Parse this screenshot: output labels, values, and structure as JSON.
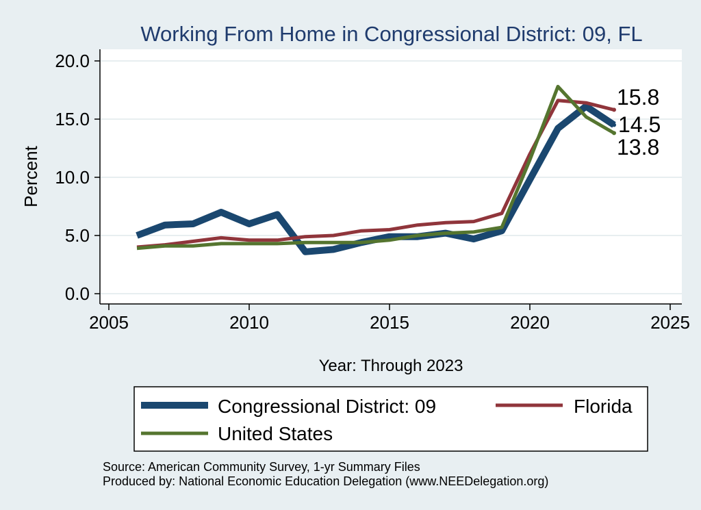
{
  "chart_data": {
    "type": "line",
    "title": "Working From Home in Congressional District: 09, FL",
    "xlabel": "Year: Through 2023",
    "ylabel": "Percent",
    "xlim": [
      2005,
      2025
    ],
    "ylim": [
      0,
      20
    ],
    "xticks": [
      2005,
      2010,
      2015,
      2020,
      2025
    ],
    "yticks": [
      "0.0",
      "5.0",
      "10.0",
      "15.0",
      "20.0"
    ],
    "x": [
      2006,
      2007,
      2008,
      2009,
      2010,
      2011,
      2012,
      2013,
      2014,
      2015,
      2016,
      2017,
      2018,
      2019,
      2020,
      2021,
      2022,
      2023
    ],
    "series": [
      {
        "name": "Congressional District: 09",
        "color": "#1a476f",
        "values": [
          5.0,
          5.9,
          6.0,
          7.0,
          6.0,
          6.8,
          3.6,
          3.8,
          4.4,
          4.9,
          4.9,
          5.2,
          4.7,
          5.4,
          9.8,
          14.2,
          16.1,
          14.5
        ],
        "end_label": "14.5"
      },
      {
        "name": "Florida",
        "color": "#90353b",
        "values": [
          4.0,
          4.2,
          4.5,
          4.8,
          4.6,
          4.6,
          4.9,
          5.0,
          5.4,
          5.5,
          5.9,
          6.1,
          6.2,
          6.9,
          12.0,
          16.6,
          16.4,
          15.8
        ],
        "end_label": "15.8"
      },
      {
        "name": "United States",
        "color": "#55752f",
        "values": [
          3.9,
          4.1,
          4.1,
          4.3,
          4.3,
          4.3,
          4.4,
          4.4,
          4.4,
          4.6,
          5.0,
          5.2,
          5.3,
          5.7,
          11.5,
          17.8,
          15.2,
          13.8
        ],
        "end_label": "13.8"
      }
    ],
    "legend": {
      "position": "bottom",
      "entries": [
        "Congressional District: 09",
        "Florida",
        "United States"
      ]
    },
    "notes": [
      "Source: American Community Survey, 1-yr Summary Files",
      "Produced by: National Economic Education Delegation (www.NEEDelegation.org)"
    ]
  }
}
